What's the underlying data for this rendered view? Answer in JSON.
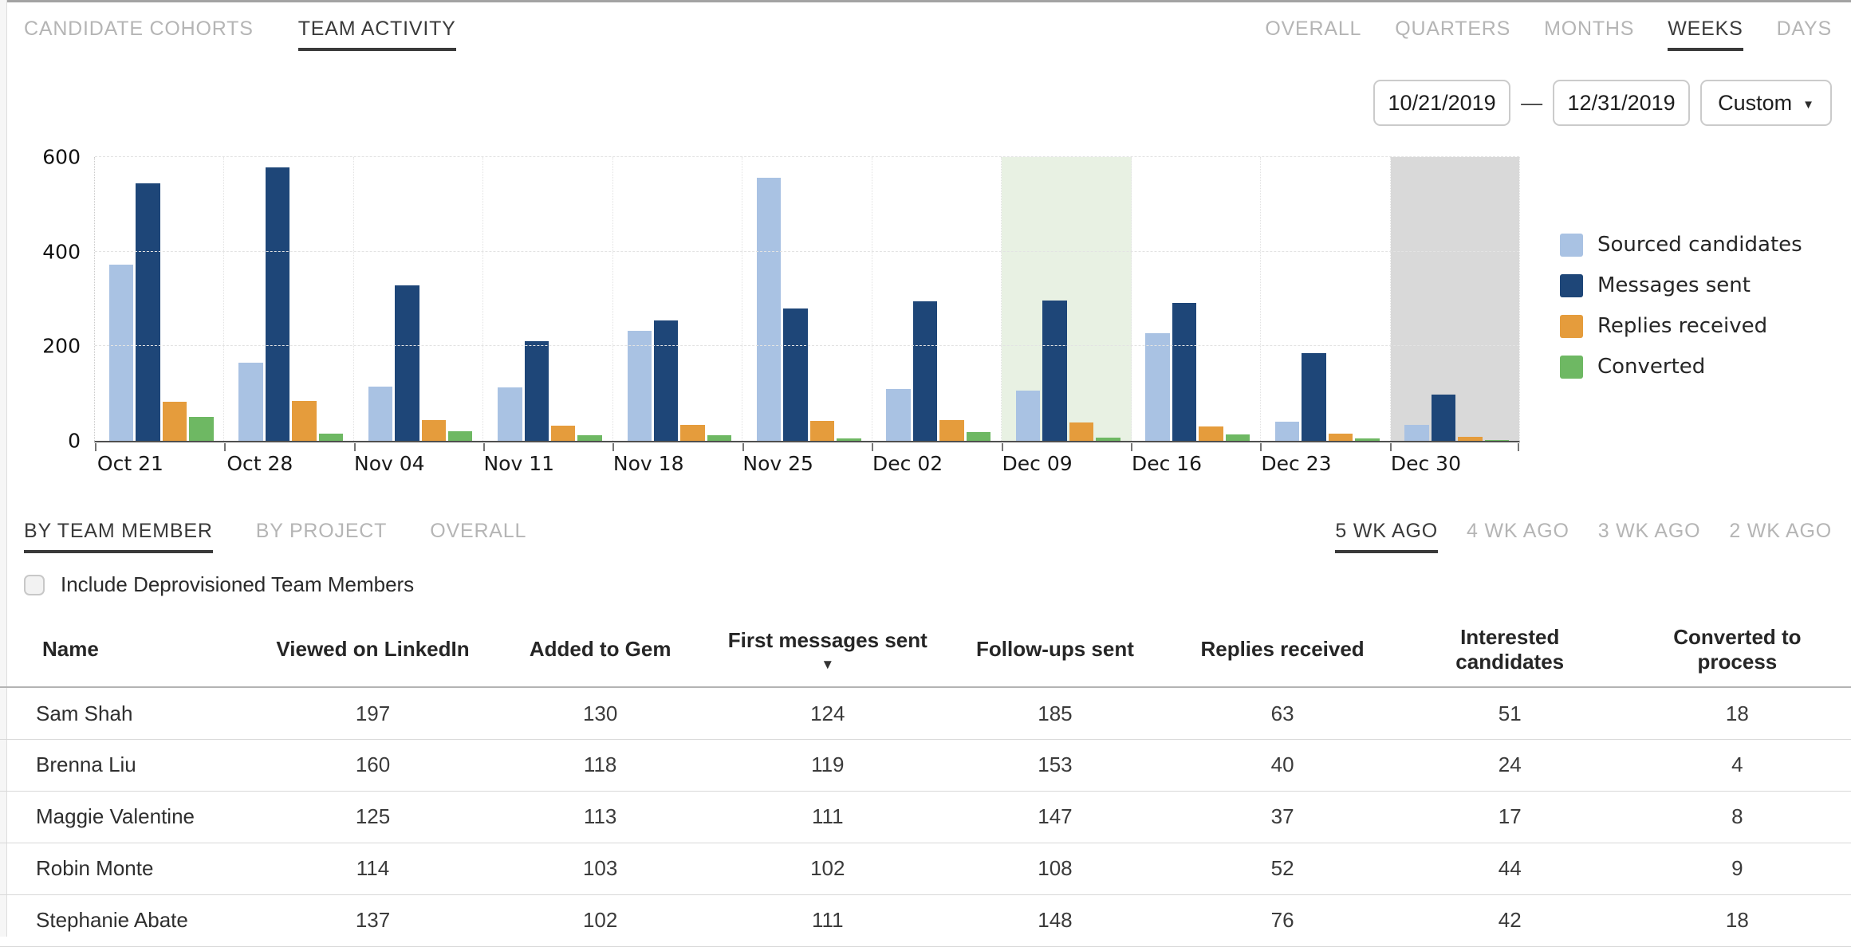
{
  "primary_tabs": [
    {
      "label": "CANDIDATE COHORTS",
      "active": false
    },
    {
      "label": "TEAM ACTIVITY",
      "active": true
    }
  ],
  "granularity_tabs": [
    {
      "label": "OVERALL",
      "active": false
    },
    {
      "label": "QUARTERS",
      "active": false
    },
    {
      "label": "MONTHS",
      "active": false
    },
    {
      "label": "WEEKS",
      "active": true
    },
    {
      "label": "DAYS",
      "active": false
    }
  ],
  "date_range": {
    "start": "10/21/2019",
    "separator": "—",
    "end": "12/31/2019",
    "preset_label": "Custom",
    "caret_icon": "▼"
  },
  "chart_data": {
    "type": "bar",
    "title": "",
    "categories": [
      "Oct 21",
      "Oct 28",
      "Nov 04",
      "Nov 11",
      "Nov 18",
      "Nov 25",
      "Dec 02",
      "Dec 09",
      "Dec 16",
      "Dec 23",
      "Dec 30"
    ],
    "series": [
      {
        "name": "Sourced candidates",
        "color": "#a9c2e3",
        "values": [
          373,
          166,
          115,
          113,
          232,
          556,
          110,
          107,
          227,
          41,
          33
        ]
      },
      {
        "name": "Messages sent",
        "color": "#1e4678",
        "values": [
          545,
          578,
          328,
          210,
          254,
          280,
          295,
          296,
          291,
          186,
          97
        ]
      },
      {
        "name": "Replies received",
        "color": "#e59c3c",
        "values": [
          83,
          85,
          44,
          32,
          33,
          43,
          44,
          38,
          31,
          16,
          9
        ]
      },
      {
        "name": "Converted",
        "color": "#6eb863",
        "values": [
          50,
          16,
          20,
          12,
          12,
          5,
          18,
          6,
          13,
          5,
          2
        ]
      }
    ],
    "ylim": [
      0,
      600
    ],
    "yticks": [
      0,
      200,
      400,
      600
    ],
    "grid": true,
    "legend_position": "right",
    "highlights": [
      {
        "category": "Dec 09",
        "color": "#e8f1e3"
      },
      {
        "category": "Dec 30",
        "color": "#d9d9d9"
      }
    ]
  },
  "breakdown_tabs": [
    {
      "label": "BY TEAM MEMBER",
      "active": true
    },
    {
      "label": "BY PROJECT",
      "active": false
    },
    {
      "label": "OVERALL",
      "active": false
    }
  ],
  "week_tabs": [
    {
      "label": "5 WK AGO",
      "active": true
    },
    {
      "label": "4 WK AGO",
      "active": false
    },
    {
      "label": "3 WK AGO",
      "active": false
    },
    {
      "label": "2 WK AGO",
      "active": false
    }
  ],
  "filters": {
    "include_deprovisioned_label": "Include Deprovisioned Team Members",
    "checked": false
  },
  "table": {
    "columns": [
      {
        "label": "Name"
      },
      {
        "label": "Viewed on LinkedIn"
      },
      {
        "label": "Added to Gem"
      },
      {
        "label": "First messages sent",
        "sorted": true,
        "sort_indicator": "▼"
      },
      {
        "label": "Follow-ups sent"
      },
      {
        "label": "Replies received"
      },
      {
        "label": "Interested\ncandidates"
      },
      {
        "label": "Converted to\nprocess"
      }
    ],
    "rows": [
      {
        "name": "Sam Shah",
        "values": [
          197,
          130,
          124,
          185,
          63,
          51,
          18
        ]
      },
      {
        "name": "Brenna Liu",
        "values": [
          160,
          118,
          119,
          153,
          40,
          24,
          4
        ]
      },
      {
        "name": "Maggie Valentine",
        "values": [
          125,
          113,
          111,
          147,
          37,
          17,
          8
        ]
      },
      {
        "name": "Robin Monte",
        "values": [
          114,
          103,
          102,
          108,
          52,
          44,
          9
        ]
      },
      {
        "name": "Stephanie Abate",
        "values": [
          137,
          102,
          111,
          148,
          76,
          42,
          18
        ]
      }
    ]
  }
}
